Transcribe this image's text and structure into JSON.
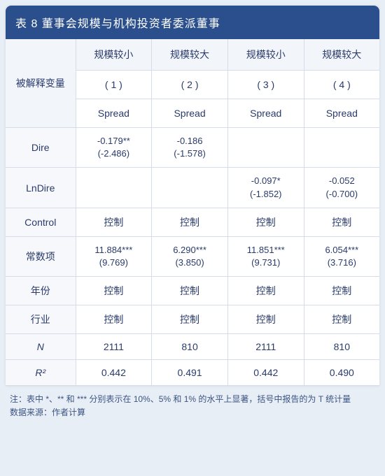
{
  "header": {
    "title": "表 8  董事会规模与机构投资者委派董事"
  },
  "columns": {
    "label": "被解释变量",
    "groups": [
      "规模较小",
      "规模较大",
      "规模较小",
      "规模较大"
    ],
    "numbers": [
      "( 1 )",
      "( 2 )",
      "( 3 )",
      "( 4 )"
    ],
    "depvars": [
      "Spread",
      "Spread",
      "Spread",
      "Spread"
    ]
  },
  "rows": {
    "dire": {
      "label": "Dire",
      "c1": {
        "val": "-0.179**",
        "t": "(-2.486)"
      },
      "c2": {
        "val": "-0.186",
        "t": "(-1.578)"
      },
      "c3": {
        "val": "",
        "t": ""
      },
      "c4": {
        "val": "",
        "t": ""
      }
    },
    "lndire": {
      "label": "LnDire",
      "c1": {
        "val": "",
        "t": ""
      },
      "c2": {
        "val": "",
        "t": ""
      },
      "c3": {
        "val": "-0.097*",
        "t": "(-1.852)"
      },
      "c4": {
        "val": "-0.052",
        "t": "(-0.700)"
      }
    },
    "control": {
      "label": "Control",
      "c1": "控制",
      "c2": "控制",
      "c3": "控制",
      "c4": "控制"
    },
    "constant": {
      "label": "常数项",
      "c1": {
        "val": "11.884***",
        "t": "(9.769)"
      },
      "c2": {
        "val": "6.290***",
        "t": "(3.850)"
      },
      "c3": {
        "val": "11.851***",
        "t": "(9.731)"
      },
      "c4": {
        "val": "6.054***",
        "t": "(3.716)"
      }
    },
    "year": {
      "label": "年份",
      "c1": "控制",
      "c2": "控制",
      "c3": "控制",
      "c4": "控制"
    },
    "industry": {
      "label": "行业",
      "c1": "控制",
      "c2": "控制",
      "c3": "控制",
      "c4": "控制"
    },
    "n": {
      "label": "N",
      "c1": "2111",
      "c2": "810",
      "c3": "2111",
      "c4": "810"
    },
    "r2": {
      "label": "R²",
      "c1": "0.442",
      "c2": "0.491",
      "c3": "0.442",
      "c4": "0.490"
    }
  },
  "footer": {
    "note1": "注：表中 *、** 和 *** 分别表示在 10%、5% 和 1% 的水平上显著，括号中报告的为 T 统计量",
    "note2": "数据来源：作者计算"
  },
  "style": {
    "header_bg": "#2b4f8c",
    "header_text": "#ffffff",
    "body_bg": "#e8eef5",
    "cell_text": "#2a3b6b",
    "border_color": "#d4dde9",
    "rowlabel_bg": "#f6f8fb",
    "header_row_bg": "#f2f5fa"
  }
}
